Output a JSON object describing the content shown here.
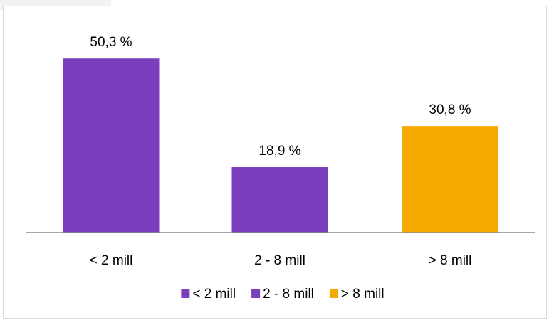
{
  "chart_data": {
    "type": "bar",
    "categories": [
      "< 2 mill",
      "2 - 8 mill",
      "> 8 mill"
    ],
    "values": [
      50.3,
      18.9,
      30.8
    ],
    "value_labels": [
      "50,3 %",
      "18,9 %",
      "30,8 %"
    ],
    "colors": [
      "#7b3fbe",
      "#7b3fbe",
      "#f5aa00"
    ],
    "ylim": [
      0,
      60
    ],
    "grid": false,
    "legend": {
      "placement": "bottom",
      "entries": [
        {
          "label": "< 2 mill",
          "color": "#7b3fbe"
        },
        {
          "label": "2 - 8 mill",
          "color": "#7b3fbe"
        },
        {
          "label": "> 8 mill",
          "color": "#f5aa00"
        }
      ]
    }
  }
}
